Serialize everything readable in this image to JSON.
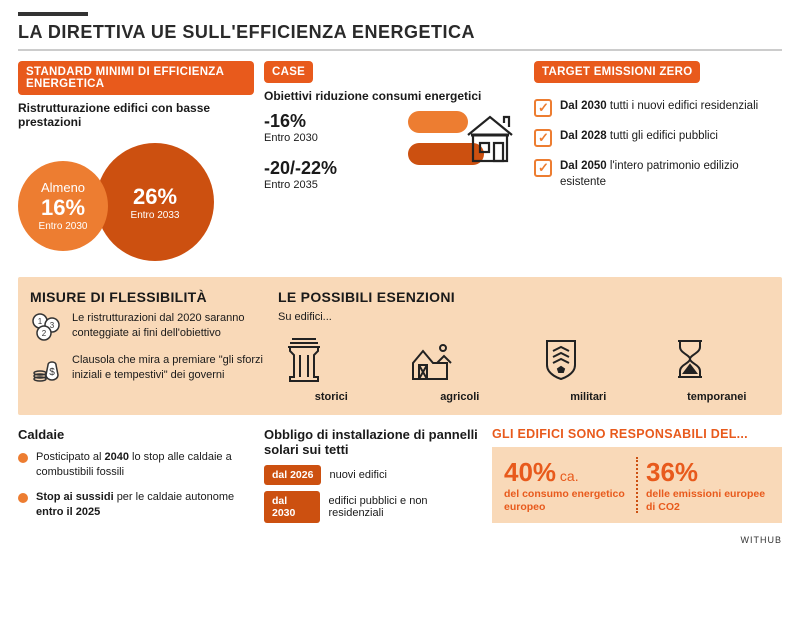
{
  "title": "LA DIRETTIVA UE SULL'EFFICIENZA ENERGETICA",
  "colors": {
    "primary": "#e85a1c",
    "secondary": "#ed7d31",
    "dark": "#cc5010",
    "band": "#f9d9b8"
  },
  "standards": {
    "header": "STANDARD MINIMI DI EFFICIENZA ENERGETICA",
    "sub": "Ristrutturazione edifici con basse prestazioni",
    "c1_pre": "Almeno",
    "c1_pct": "16%",
    "c1_sub": "Entro 2030",
    "c2_pct": "26%",
    "c2_sub": "Entro 2033"
  },
  "case": {
    "header": "CASE",
    "sub": "Obiettivi riduzione consumi energetici",
    "items": [
      {
        "pct": "-16%",
        "yr": "Entro 2030"
      },
      {
        "pct": "-20/-22%",
        "yr": "Entro 2035"
      }
    ]
  },
  "target": {
    "header": "TARGET EMISSIONI ZERO",
    "items": [
      {
        "b": "Dal 2030",
        "t": " tutti i nuovi edifici residenziali"
      },
      {
        "b": "Dal 2028",
        "t": " tutti gli edifici pubblici"
      },
      {
        "b": "Dal 2050",
        "t": " l'intero patrimonio edilizio esistente"
      }
    ]
  },
  "flex": {
    "header": "MISURE DI FLESSIBILITÀ",
    "i1": "Le ristrutturazioni dal 2020 saranno conteggiate ai fini dell'obiettivo",
    "i2": "Clausola che mira a premiare \"gli sforzi iniziali e tempestivi\" dei governi"
  },
  "exemp": {
    "header": "LE POSSIBILI ESENZIONI",
    "sub": "Su edifici...",
    "labels": [
      "storici",
      "agricoli",
      "militari",
      "temporanei"
    ]
  },
  "caldaie": {
    "header": "Caldaie",
    "i1a": "Posticipato al ",
    "i1b": "2040",
    "i1c": " lo stop alle caldaie a combustibili fossili",
    "i2a": "Stop ai sussidi ",
    "i2b": "per le caldaie autonome ",
    "i2c": "entro il 2025"
  },
  "solar": {
    "header": "Obbligo di installazione di pannelli solari sui tetti",
    "r1": {
      "pill": "dal 2026",
      "t": "nuovi edifici"
    },
    "r2": {
      "pill": "dal 2030",
      "t": "edifici pubblici e non residenziali"
    }
  },
  "stats": {
    "header": "GLI EDIFICI SONO RESPONSABILI DEL...",
    "s1": {
      "pct": "40%",
      "suf": " ca.",
      "t": "del consumo energetico europeo"
    },
    "s2": {
      "pct": "36%",
      "t": "delle emissioni europee di CO2"
    }
  },
  "credit": "WITHUB"
}
